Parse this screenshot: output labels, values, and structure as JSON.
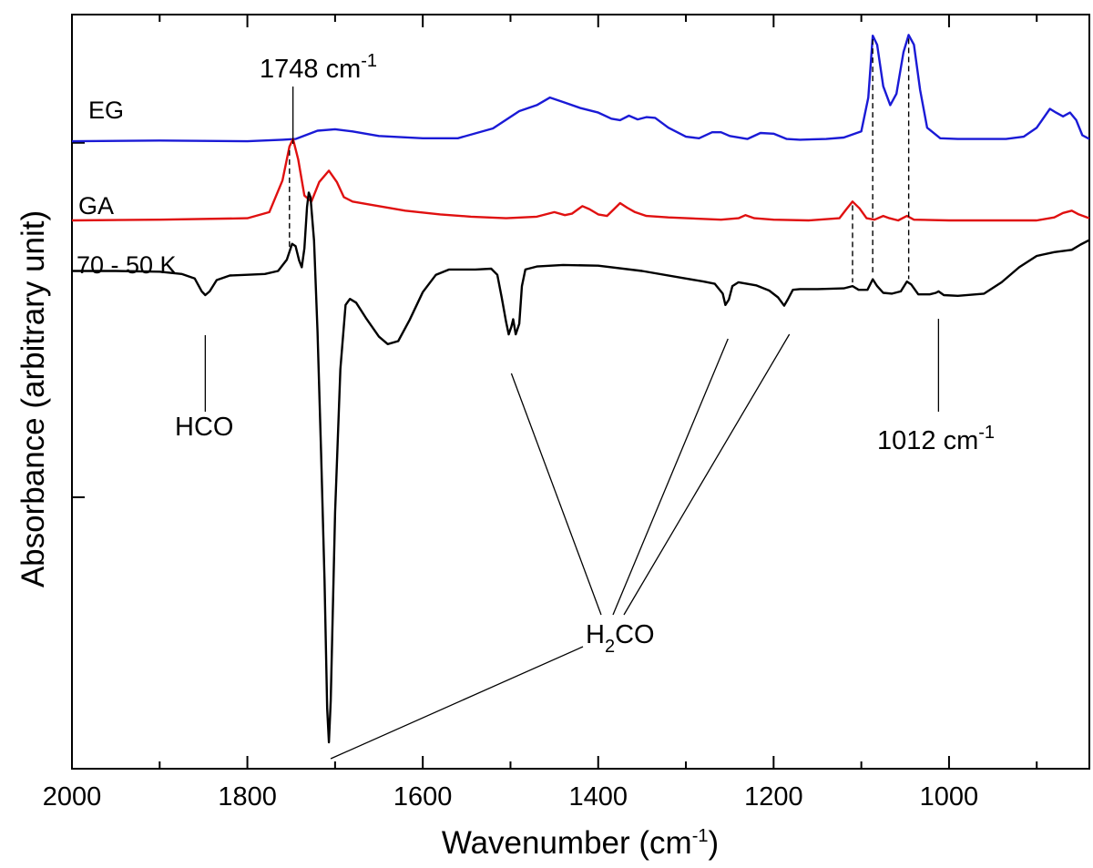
{
  "chart_data": {
    "type": "line",
    "title": "",
    "xlabel": "Wavenumber (cm",
    "xlabel_sup": "-1",
    "xlabel_close": ")",
    "ylabel": "Absorbance (arbitrary unit)",
    "xlim": [
      2000,
      840
    ],
    "x_reversed": true,
    "ylim": [
      0,
      1
    ],
    "x_ticks": [
      2000,
      1800,
      1600,
      1400,
      1200,
      1000
    ],
    "y_ticks_unlabeled": [
      0.36,
      0.83
    ],
    "grid": false,
    "legend": "none",
    "series": [
      {
        "name": "EG",
        "color": "#1a1ad6",
        "points": [
          [
            2000,
            0.832
          ],
          [
            1900,
            0.833
          ],
          [
            1800,
            0.832
          ],
          [
            1760,
            0.834
          ],
          [
            1745,
            0.835
          ],
          [
            1720,
            0.846
          ],
          [
            1700,
            0.848
          ],
          [
            1680,
            0.845
          ],
          [
            1650,
            0.839
          ],
          [
            1600,
            0.836
          ],
          [
            1560,
            0.836
          ],
          [
            1520,
            0.849
          ],
          [
            1490,
            0.872
          ],
          [
            1470,
            0.88
          ],
          [
            1455,
            0.89
          ],
          [
            1440,
            0.884
          ],
          [
            1420,
            0.876
          ],
          [
            1400,
            0.87
          ],
          [
            1385,
            0.862
          ],
          [
            1375,
            0.86
          ],
          [
            1365,
            0.866
          ],
          [
            1355,
            0.861
          ],
          [
            1345,
            0.864
          ],
          [
            1335,
            0.863
          ],
          [
            1320,
            0.85
          ],
          [
            1300,
            0.838
          ],
          [
            1285,
            0.836
          ],
          [
            1270,
            0.844
          ],
          [
            1260,
            0.844
          ],
          [
            1250,
            0.839
          ],
          [
            1230,
            0.835
          ],
          [
            1215,
            0.843
          ],
          [
            1200,
            0.842
          ],
          [
            1185,
            0.835
          ],
          [
            1170,
            0.834
          ],
          [
            1140,
            0.835
          ],
          [
            1120,
            0.837
          ],
          [
            1100,
            0.845
          ],
          [
            1092,
            0.89
          ],
          [
            1087,
            0.972
          ],
          [
            1082,
            0.96
          ],
          [
            1075,
            0.905
          ],
          [
            1067,
            0.88
          ],
          [
            1060,
            0.895
          ],
          [
            1052,
            0.95
          ],
          [
            1046,
            0.973
          ],
          [
            1040,
            0.96
          ],
          [
            1033,
            0.9
          ],
          [
            1025,
            0.85
          ],
          [
            1010,
            0.836
          ],
          [
            990,
            0.835
          ],
          [
            960,
            0.835
          ],
          [
            935,
            0.835
          ],
          [
            915,
            0.838
          ],
          [
            900,
            0.85
          ],
          [
            885,
            0.875
          ],
          [
            878,
            0.87
          ],
          [
            870,
            0.865
          ],
          [
            862,
            0.87
          ],
          [
            855,
            0.86
          ],
          [
            848,
            0.84
          ],
          [
            840,
            0.835
          ]
        ]
      },
      {
        "name": "GA",
        "color": "#e01010",
        "points": [
          [
            2000,
            0.727
          ],
          [
            1900,
            0.728
          ],
          [
            1800,
            0.73
          ],
          [
            1775,
            0.738
          ],
          [
            1760,
            0.78
          ],
          [
            1752,
            0.825
          ],
          [
            1748,
            0.835
          ],
          [
            1742,
            0.808
          ],
          [
            1735,
            0.76
          ],
          [
            1727,
            0.752
          ],
          [
            1718,
            0.778
          ],
          [
            1707,
            0.793
          ],
          [
            1698,
            0.778
          ],
          [
            1690,
            0.758
          ],
          [
            1680,
            0.752
          ],
          [
            1660,
            0.748
          ],
          [
            1620,
            0.74
          ],
          [
            1580,
            0.735
          ],
          [
            1545,
            0.732
          ],
          [
            1505,
            0.73
          ],
          [
            1470,
            0.732
          ],
          [
            1450,
            0.738
          ],
          [
            1438,
            0.734
          ],
          [
            1430,
            0.736
          ],
          [
            1418,
            0.746
          ],
          [
            1410,
            0.742
          ],
          [
            1400,
            0.735
          ],
          [
            1390,
            0.733
          ],
          [
            1382,
            0.742
          ],
          [
            1375,
            0.75
          ],
          [
            1367,
            0.744
          ],
          [
            1358,
            0.738
          ],
          [
            1345,
            0.733
          ],
          [
            1320,
            0.731
          ],
          [
            1260,
            0.728
          ],
          [
            1240,
            0.73
          ],
          [
            1232,
            0.734
          ],
          [
            1222,
            0.73
          ],
          [
            1200,
            0.728
          ],
          [
            1160,
            0.727
          ],
          [
            1125,
            0.73
          ],
          [
            1117,
            0.742
          ],
          [
            1110,
            0.752
          ],
          [
            1102,
            0.743
          ],
          [
            1094,
            0.73
          ],
          [
            1085,
            0.728
          ],
          [
            1075,
            0.733
          ],
          [
            1068,
            0.73
          ],
          [
            1058,
            0.727
          ],
          [
            1048,
            0.733
          ],
          [
            1040,
            0.728
          ],
          [
            1000,
            0.727
          ],
          [
            960,
            0.727
          ],
          [
            900,
            0.727
          ],
          [
            880,
            0.731
          ],
          [
            870,
            0.737
          ],
          [
            860,
            0.74
          ],
          [
            852,
            0.735
          ],
          [
            840,
            0.73
          ]
        ]
      },
      {
        "name": "70 - 50 K",
        "color": "#000000",
        "points": [
          [
            2000,
            0.66
          ],
          [
            1950,
            0.66
          ],
          [
            1900,
            0.659
          ],
          [
            1875,
            0.656
          ],
          [
            1860,
            0.65
          ],
          [
            1852,
            0.633
          ],
          [
            1848,
            0.628
          ],
          [
            1843,
            0.633
          ],
          [
            1835,
            0.648
          ],
          [
            1820,
            0.654
          ],
          [
            1800,
            0.655
          ],
          [
            1780,
            0.656
          ],
          [
            1765,
            0.66
          ],
          [
            1755,
            0.675
          ],
          [
            1749,
            0.696
          ],
          [
            1745,
            0.693
          ],
          [
            1741,
            0.674
          ],
          [
            1738,
            0.665
          ],
          [
            1735,
            0.69
          ],
          [
            1732,
            0.745
          ],
          [
            1730,
            0.764
          ],
          [
            1728,
            0.758
          ],
          [
            1724,
            0.7
          ],
          [
            1720,
            0.58
          ],
          [
            1716,
            0.42
          ],
          [
            1712,
            0.25
          ],
          [
            1709,
            0.08
          ],
          [
            1707,
            0.035
          ],
          [
            1705,
            0.09
          ],
          [
            1700,
            0.34
          ],
          [
            1694,
            0.53
          ],
          [
            1688,
            0.615
          ],
          [
            1683,
            0.623
          ],
          [
            1676,
            0.618
          ],
          [
            1665,
            0.598
          ],
          [
            1650,
            0.573
          ],
          [
            1640,
            0.563
          ],
          [
            1628,
            0.567
          ],
          [
            1615,
            0.595
          ],
          [
            1600,
            0.632
          ],
          [
            1585,
            0.655
          ],
          [
            1570,
            0.662
          ],
          [
            1540,
            0.662
          ],
          [
            1522,
            0.663
          ],
          [
            1515,
            0.655
          ],
          [
            1510,
            0.625
          ],
          [
            1505,
            0.592
          ],
          [
            1502,
            0.576
          ],
          [
            1499,
            0.586
          ],
          [
            1497,
            0.596
          ],
          [
            1494,
            0.576
          ],
          [
            1490,
            0.59
          ],
          [
            1487,
            0.64
          ],
          [
            1483,
            0.662
          ],
          [
            1470,
            0.666
          ],
          [
            1440,
            0.668
          ],
          [
            1400,
            0.667
          ],
          [
            1350,
            0.66
          ],
          [
            1300,
            0.65
          ],
          [
            1280,
            0.646
          ],
          [
            1267,
            0.643
          ],
          [
            1258,
            0.63
          ],
          [
            1255,
            0.615
          ],
          [
            1251,
            0.622
          ],
          [
            1247,
            0.64
          ],
          [
            1240,
            0.645
          ],
          [
            1220,
            0.641
          ],
          [
            1205,
            0.634
          ],
          [
            1195,
            0.625
          ],
          [
            1188,
            0.614
          ],
          [
            1184,
            0.622
          ],
          [
            1178,
            0.635
          ],
          [
            1170,
            0.636
          ],
          [
            1150,
            0.636
          ],
          [
            1120,
            0.637
          ],
          [
            1110,
            0.64
          ],
          [
            1103,
            0.635
          ],
          [
            1093,
            0.635
          ],
          [
            1087,
            0.649
          ],
          [
            1082,
            0.64
          ],
          [
            1075,
            0.631
          ],
          [
            1065,
            0.63
          ],
          [
            1055,
            0.633
          ],
          [
            1048,
            0.646
          ],
          [
            1043,
            0.642
          ],
          [
            1035,
            0.629
          ],
          [
            1022,
            0.629
          ],
          [
            1015,
            0.631
          ],
          [
            1012,
            0.633
          ],
          [
            1006,
            0.628
          ],
          [
            990,
            0.627
          ],
          [
            960,
            0.63
          ],
          [
            940,
            0.645
          ],
          [
            920,
            0.665
          ],
          [
            900,
            0.68
          ],
          [
            880,
            0.685
          ],
          [
            860,
            0.688
          ],
          [
            850,
            0.695
          ],
          [
            840,
            0.701
          ]
        ]
      }
    ],
    "annotations": {
      "peak1748": {
        "text": "1748 cm",
        "sup": "-1"
      },
      "hco": {
        "text": "HCO"
      },
      "peak1012": {
        "text": "1012 cm",
        "sup": "-1"
      },
      "h2co": {
        "prefix": "H",
        "sub": "2",
        "suffix": "CO"
      }
    },
    "dashed_markers": [
      1752,
      1087,
      1046,
      1110
    ]
  }
}
